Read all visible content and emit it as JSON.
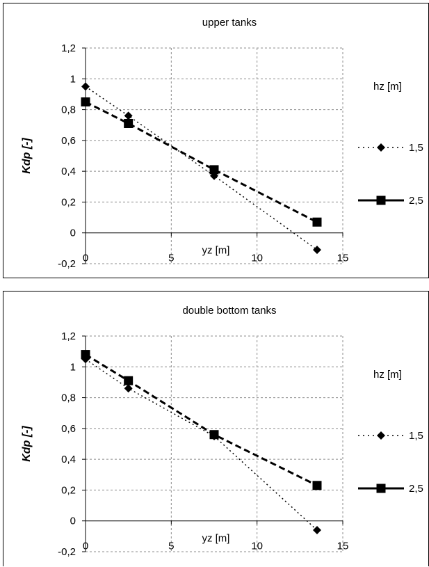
{
  "chart_data": [
    {
      "type": "line",
      "title": "upper tanks",
      "ylabel": "Kdp [-]",
      "xlabel": "yz [m]",
      "xlim": [
        0,
        15
      ],
      "ylim": [
        -0.2,
        1.2
      ],
      "x_ticks": [
        "0",
        "5",
        "10",
        "15"
      ],
      "y_ticks": [
        "-0,2",
        "0",
        "0,2",
        "0,4",
        "0,6",
        "0,8",
        "1",
        "1,2"
      ],
      "grid": true,
      "legend_title": "hz [m]",
      "legend_position": "right",
      "series": [
        {
          "name": "1,5",
          "marker": "diamond",
          "line": "dotted",
          "x": [
            0,
            2.5,
            7.5,
            13.5
          ],
          "y": [
            0.95,
            0.76,
            0.37,
            -0.11
          ]
        },
        {
          "name": "2,5",
          "marker": "square",
          "line": "dashed",
          "x": [
            0,
            2.5,
            7.5,
            13.5
          ],
          "y": [
            0.85,
            0.71,
            0.41,
            0.07
          ]
        }
      ]
    },
    {
      "type": "line",
      "title": "double bottom tanks",
      "ylabel": "Kdp [-]",
      "xlabel": "yz [m]",
      "xlim": [
        0,
        15
      ],
      "ylim": [
        -0.2,
        1.2
      ],
      "x_ticks": [
        "0",
        "5",
        "10",
        "15"
      ],
      "y_ticks": [
        "-0,2",
        "0",
        "0,2",
        "0,4",
        "0,6",
        "0,8",
        "1",
        "1,2"
      ],
      "grid": true,
      "legend_title": "hz [m]",
      "legend_position": "right",
      "series": [
        {
          "name": "1,5",
          "marker": "diamond",
          "line": "dotted",
          "x": [
            0,
            2.5,
            7.5,
            13.5
          ],
          "y": [
            1.05,
            0.86,
            0.55,
            -0.06
          ]
        },
        {
          "name": "2,5",
          "marker": "square",
          "line": "dashed",
          "x": [
            0,
            2.5,
            7.5,
            13.5
          ],
          "y": [
            1.08,
            0.91,
            0.56,
            0.23
          ]
        }
      ]
    }
  ]
}
